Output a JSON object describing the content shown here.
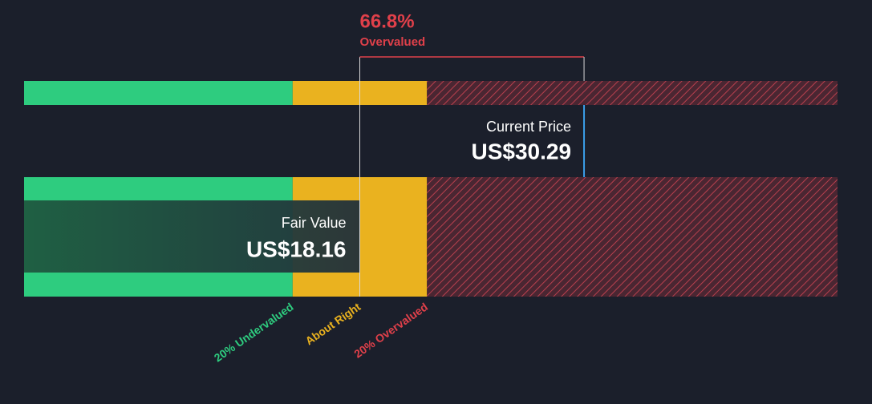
{
  "chart_data": {
    "type": "valuation",
    "difference": {
      "value": 66.8,
      "label": "66.8%"
    },
    "difference_text": "Overvalued",
    "current_price": {
      "name": "Current Price",
      "value": 30.29,
      "label": "US$30.29",
      "color": "#3b9ee8"
    },
    "fair_value": {
      "name": "Fair Value",
      "value": 18.16,
      "label": "US$18.16"
    },
    "zones": [
      {
        "label": "20% Undervalued",
        "value": 20,
        "color": "#2ecc7f"
      },
      {
        "label": "About Right",
        "color": "#eab21f"
      },
      {
        "label": "20% Overvalued",
        "value": 20,
        "color": "#e0404a"
      }
    ],
    "xlim": [
      0,
      44
    ]
  }
}
